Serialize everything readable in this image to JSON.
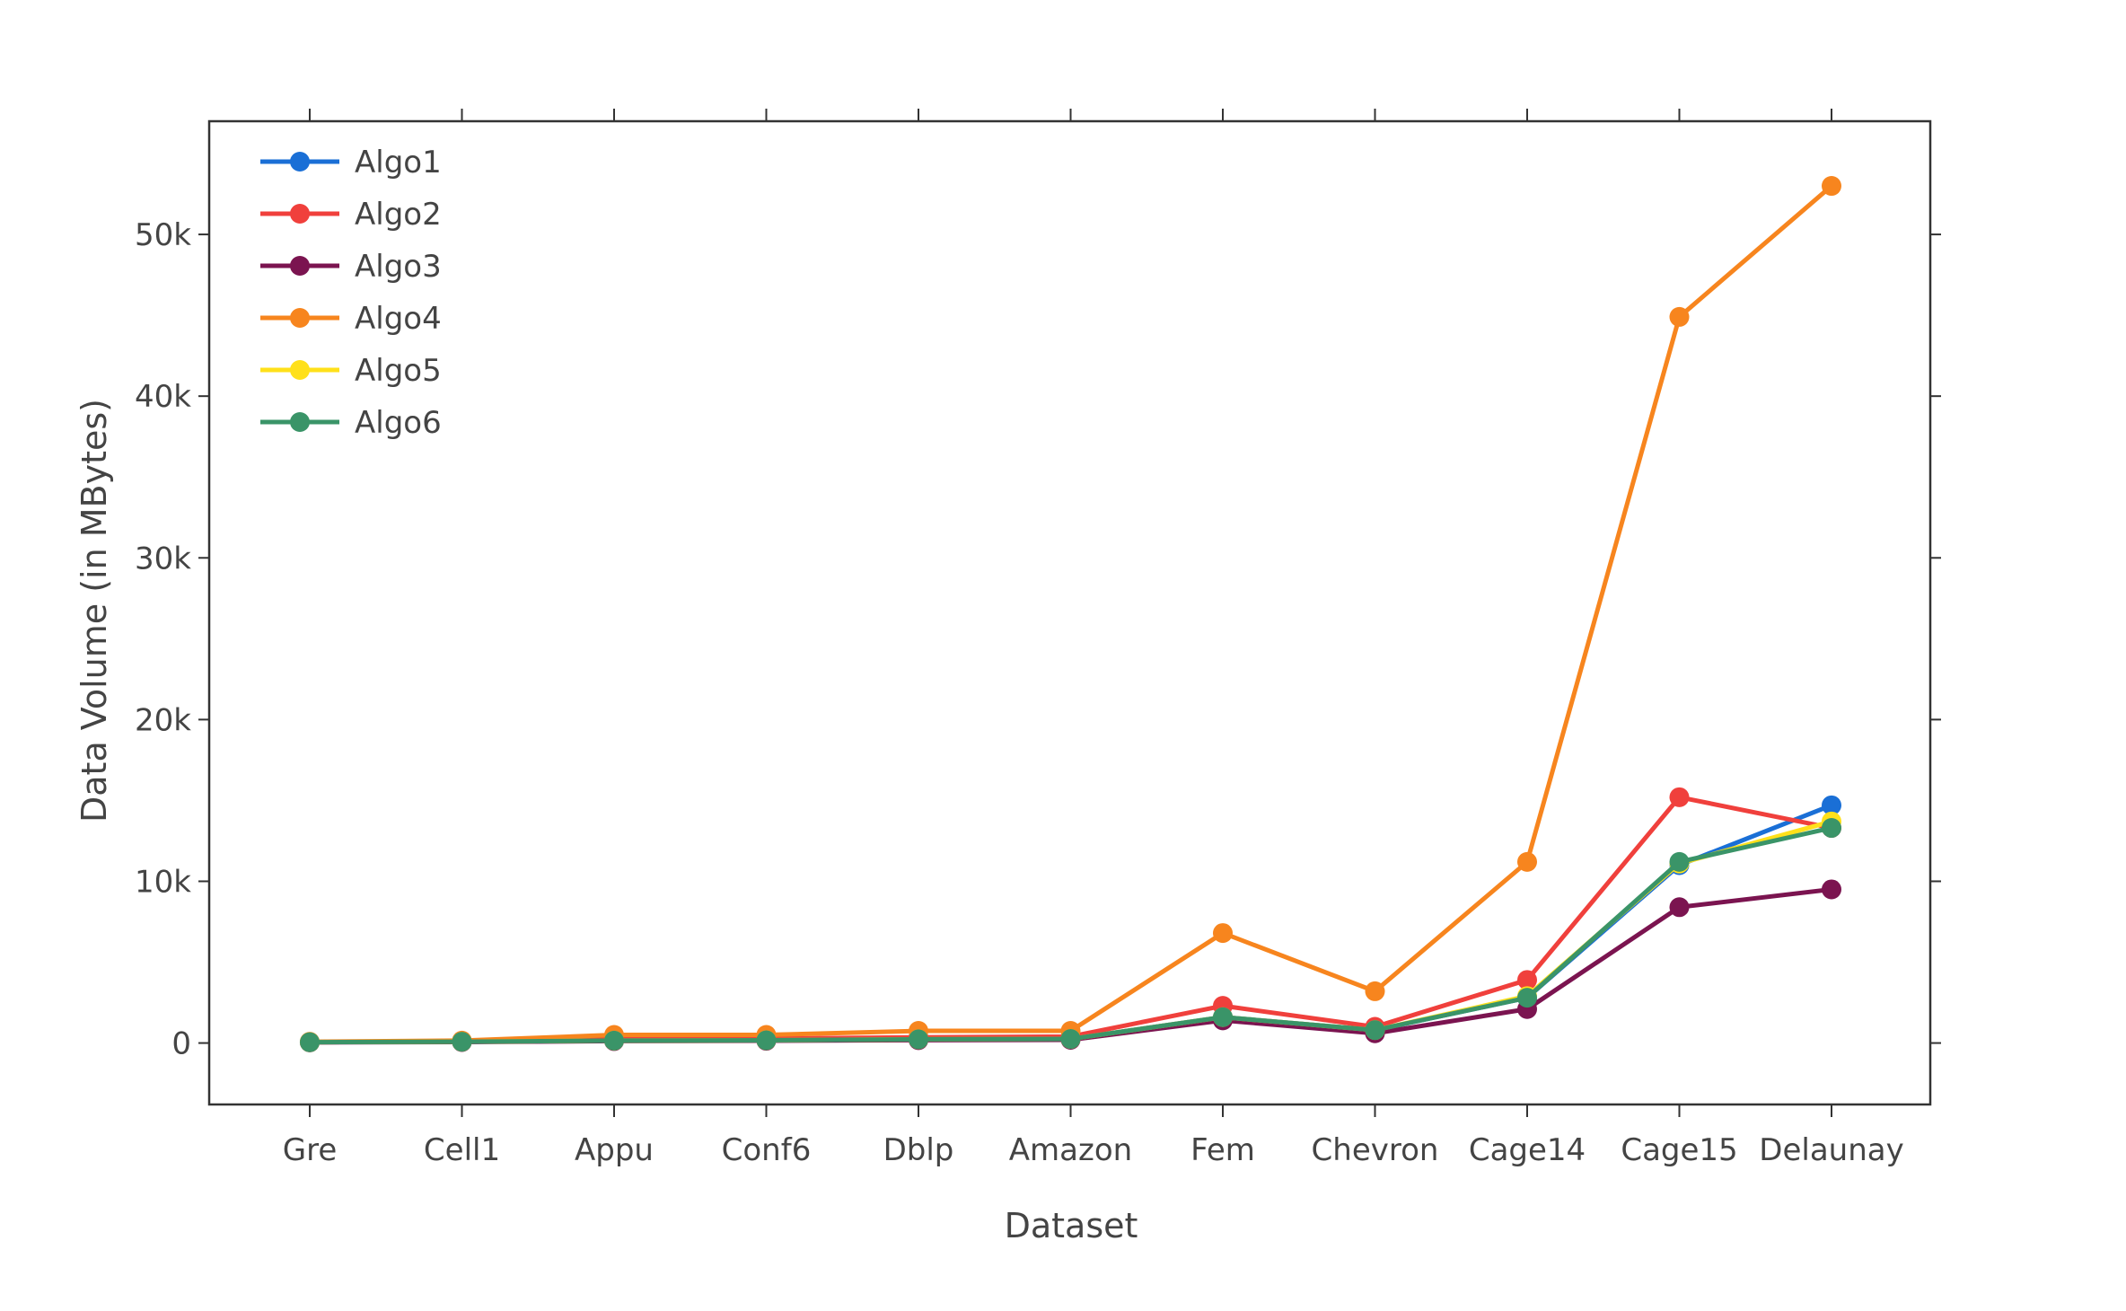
{
  "chart_data": {
    "type": "line",
    "title": "",
    "xlabel": "Dataset",
    "ylabel": "Data Volume (in MBytes)",
    "categories": [
      "Gre",
      "Cell1",
      "Appu",
      "Conf6",
      "Dblp",
      "Amazon",
      "Fem",
      "Chevron",
      "Cage14",
      "Cage15",
      "Delaunay"
    ],
    "ylim": [
      -3800,
      57000
    ],
    "yticks": [
      0,
      10000,
      20000,
      30000,
      40000,
      50000
    ],
    "ytick_labels": [
      "0",
      "10k",
      "20k",
      "30k",
      "40k",
      "50k"
    ],
    "grid": false,
    "legend_position": "top-left",
    "series": [
      {
        "name": "Algo1",
        "color": "#1a6fd6",
        "values": [
          50,
          80,
          150,
          170,
          230,
          250,
          1600,
          800,
          2800,
          11000,
          14700
        ]
      },
      {
        "name": "Algo2",
        "color": "#f0403c",
        "values": [
          50,
          100,
          250,
          270,
          350,
          400,
          2300,
          1000,
          3900,
          15200,
          13300
        ]
      },
      {
        "name": "Algo3",
        "color": "#7b1450",
        "values": [
          40,
          60,
          120,
          140,
          180,
          200,
          1400,
          600,
          2100,
          8400,
          9500
        ]
      },
      {
        "name": "Algo4",
        "color": "#f7851e",
        "values": [
          80,
          150,
          500,
          500,
          750,
          750,
          6800,
          3200,
          11200,
          44900,
          53000
        ]
      },
      {
        "name": "Algo5",
        "color": "#ffe01a",
        "values": [
          50,
          80,
          150,
          170,
          230,
          250,
          1600,
          800,
          2900,
          11100,
          13700
        ]
      },
      {
        "name": "Algo6",
        "color": "#3a9468",
        "values": [
          50,
          80,
          150,
          170,
          230,
          250,
          1600,
          800,
          2800,
          11200,
          13300
        ]
      }
    ]
  }
}
